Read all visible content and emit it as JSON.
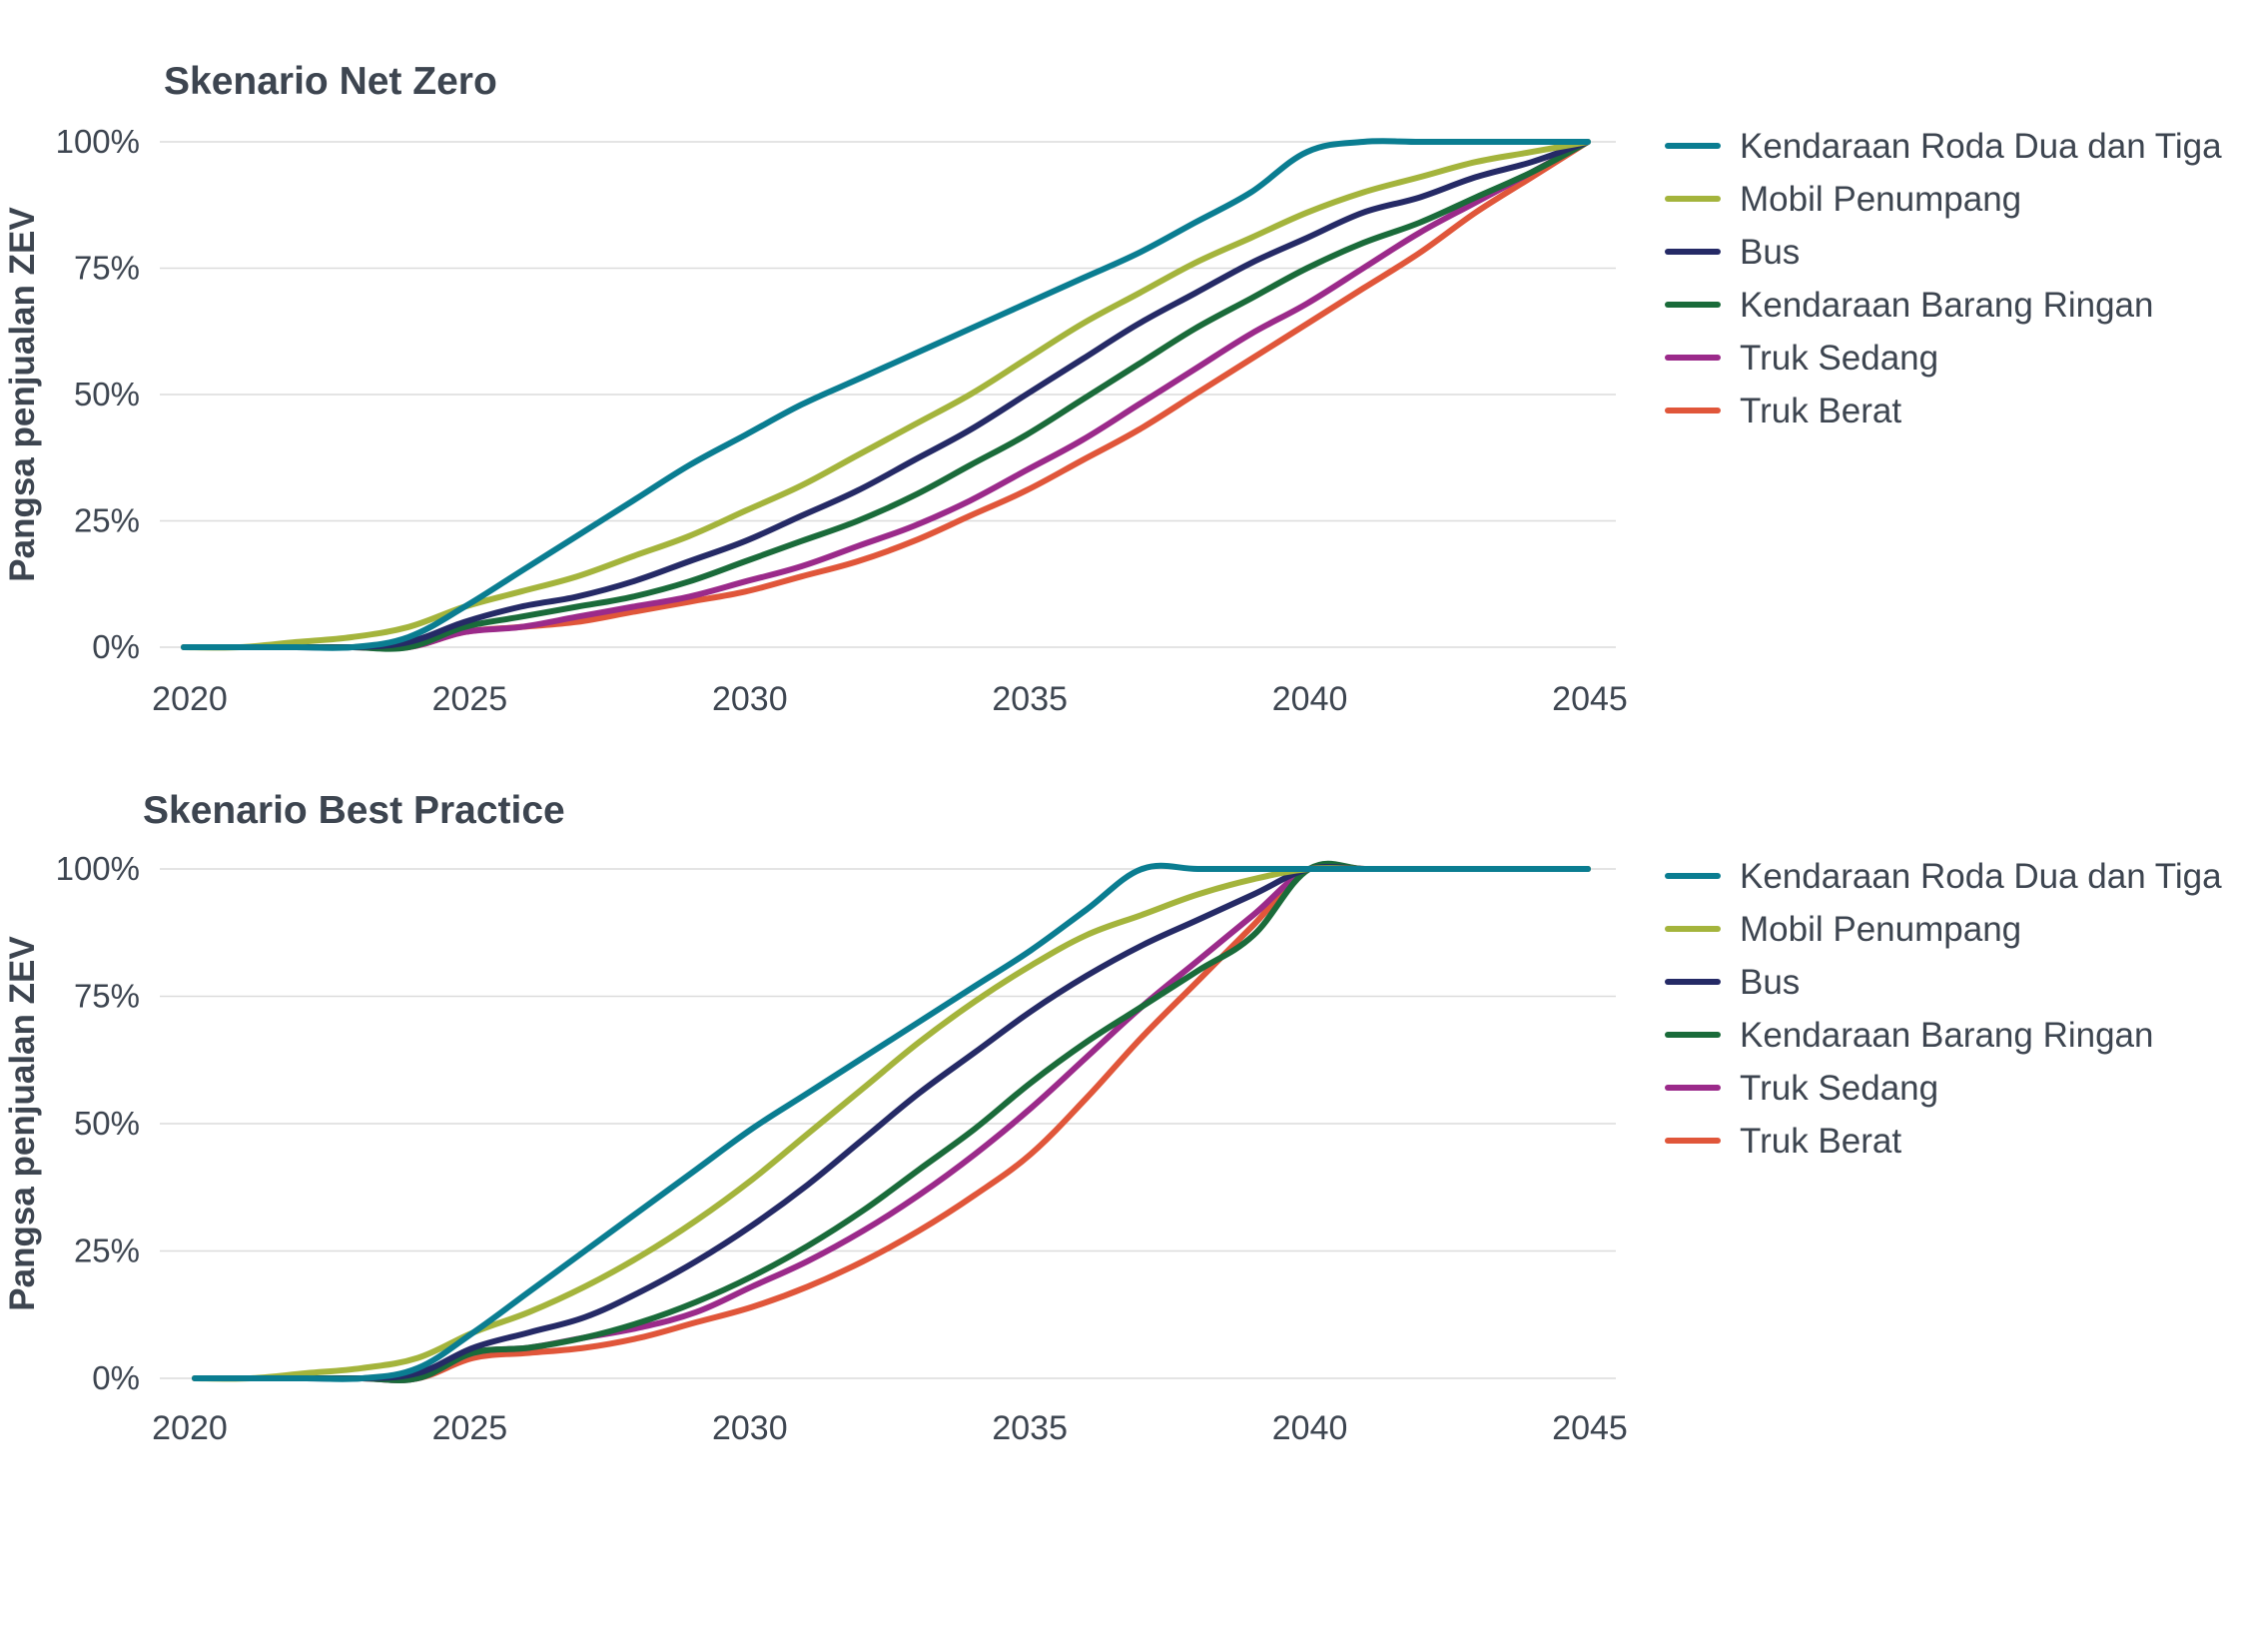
{
  "chart_data": [
    {
      "type": "line",
      "title": "Skenario Net Zero",
      "xlabel": "",
      "ylabel": "Pangsa penjualan ZEV",
      "xlim": [
        2020,
        2045
      ],
      "ylim": [
        0,
        100
      ],
      "x_ticks": [
        "2020",
        "2025",
        "2030",
        "2035",
        "2040",
        "2045"
      ],
      "y_ticks": [
        "0%",
        "25%",
        "50%",
        "75%",
        "100%"
      ],
      "grid": true,
      "legend_position": "right",
      "x": [
        2020,
        2021,
        2022,
        2023,
        2024,
        2025,
        2026,
        2027,
        2028,
        2029,
        2030,
        2031,
        2032,
        2033,
        2034,
        2035,
        2036,
        2037,
        2038,
        2039,
        2040,
        2041,
        2042,
        2043,
        2044,
        2045
      ],
      "series": [
        {
          "name": "Kendaraan Roda Dua dan Tiga",
          "color": "#0a7d91",
          "values": [
            0,
            0,
            0,
            0,
            2,
            8,
            15,
            22,
            29,
            36,
            42,
            48,
            53,
            58,
            63,
            68,
            73,
            78,
            84,
            90,
            98,
            100,
            100,
            100,
            100,
            100
          ]
        },
        {
          "name": "Mobil Penumpang",
          "color": "#a4b43c",
          "values": [
            0,
            0,
            1,
            2,
            4,
            8,
            11,
            14,
            18,
            22,
            27,
            32,
            38,
            44,
            50,
            57,
            64,
            70,
            76,
            81,
            86,
            90,
            93,
            96,
            98,
            100
          ]
        },
        {
          "name": "Bus",
          "color": "#252a66",
          "values": [
            0,
            0,
            0,
            0,
            1,
            5,
            8,
            10,
            13,
            17,
            21,
            26,
            31,
            37,
            43,
            50,
            57,
            64,
            70,
            76,
            81,
            86,
            89,
            93,
            96,
            100
          ]
        },
        {
          "name": "Kendaraan Barang Ringan",
          "color": "#1a6b3a",
          "values": [
            0,
            0,
            0,
            0,
            0,
            4,
            6,
            8,
            10,
            13,
            17,
            21,
            25,
            30,
            36,
            42,
            49,
            56,
            63,
            69,
            75,
            80,
            84,
            89,
            94,
            100
          ]
        },
        {
          "name": "Truk Sedang",
          "color": "#9b2a8a",
          "values": [
            0,
            0,
            0,
            0,
            0,
            3,
            4,
            6,
            8,
            10,
            13,
            16,
            20,
            24,
            29,
            35,
            41,
            48,
            55,
            62,
            68,
            75,
            82,
            88,
            94,
            100
          ]
        },
        {
          "name": "Truk Berat",
          "color": "#e0563a",
          "values": [
            0,
            0,
            0,
            0,
            0,
            3,
            4,
            5,
            7,
            9,
            11,
            14,
            17,
            21,
            26,
            31,
            37,
            43,
            50,
            57,
            64,
            71,
            78,
            86,
            93,
            100
          ]
        }
      ]
    },
    {
      "type": "line",
      "title": "Skenario Best Practice",
      "xlabel": "",
      "ylabel": "Pangsa penjualan ZEV",
      "xlim": [
        2020,
        2045
      ],
      "ylim": [
        0,
        100
      ],
      "x_ticks": [
        "2020",
        "2025",
        "2030",
        "2035",
        "2040",
        "2045"
      ],
      "y_ticks": [
        "0%",
        "25%",
        "50%",
        "75%",
        "100%"
      ],
      "grid": true,
      "legend_position": "right",
      "x": [
        2020,
        2021,
        2022,
        2023,
        2024,
        2025,
        2026,
        2027,
        2028,
        2029,
        2030,
        2031,
        2032,
        2033,
        2034,
        2035,
        2036,
        2037,
        2038,
        2039,
        2040,
        2041,
        2042,
        2043,
        2044,
        2045
      ],
      "series": [
        {
          "name": "Kendaraan Roda Dua dan Tiga",
          "color": "#0a7d91",
          "values": [
            0,
            0,
            0,
            0,
            2,
            9,
            17,
            25,
            33,
            41,
            49,
            56,
            63,
            70,
            77,
            84,
            92,
            100,
            100,
            100,
            100,
            100,
            100,
            100,
            100,
            100
          ]
        },
        {
          "name": "Mobil Penumpang",
          "color": "#a4b43c",
          "values": [
            0,
            0,
            1,
            2,
            4,
            9,
            13,
            18,
            24,
            31,
            39,
            48,
            57,
            66,
            74,
            81,
            87,
            91,
            95,
            98,
            100,
            100,
            100,
            100,
            100,
            100
          ]
        },
        {
          "name": "Bus",
          "color": "#252a66",
          "values": [
            0,
            0,
            0,
            0,
            1,
            6,
            9,
            12,
            17,
            23,
            30,
            38,
            47,
            56,
            64,
            72,
            79,
            85,
            90,
            95,
            100,
            100,
            100,
            100,
            100,
            100
          ]
        },
        {
          "name": "Kendaraan Barang Ringan",
          "color": "#1a6b3a",
          "values": [
            0,
            0,
            0,
            0,
            0,
            5,
            6,
            8,
            11,
            15,
            20,
            26,
            33,
            41,
            49,
            58,
            66,
            73,
            80,
            87,
            100,
            100,
            100,
            100,
            100,
            100
          ]
        },
        {
          "name": "Truk Sedang",
          "color": "#9b2a8a",
          "values": [
            0,
            0,
            0,
            0,
            0,
            5,
            6,
            8,
            10,
            13,
            18,
            23,
            29,
            36,
            44,
            53,
            63,
            73,
            82,
            91,
            100,
            100,
            100,
            100,
            100,
            100
          ]
        },
        {
          "name": "Truk Berat",
          "color": "#e0563a",
          "values": [
            0,
            0,
            0,
            0,
            0,
            4,
            5,
            6,
            8,
            11,
            14,
            18,
            23,
            29,
            36,
            44,
            55,
            67,
            78,
            89,
            100,
            100,
            100,
            100,
            100,
            100
          ]
        }
      ]
    }
  ]
}
